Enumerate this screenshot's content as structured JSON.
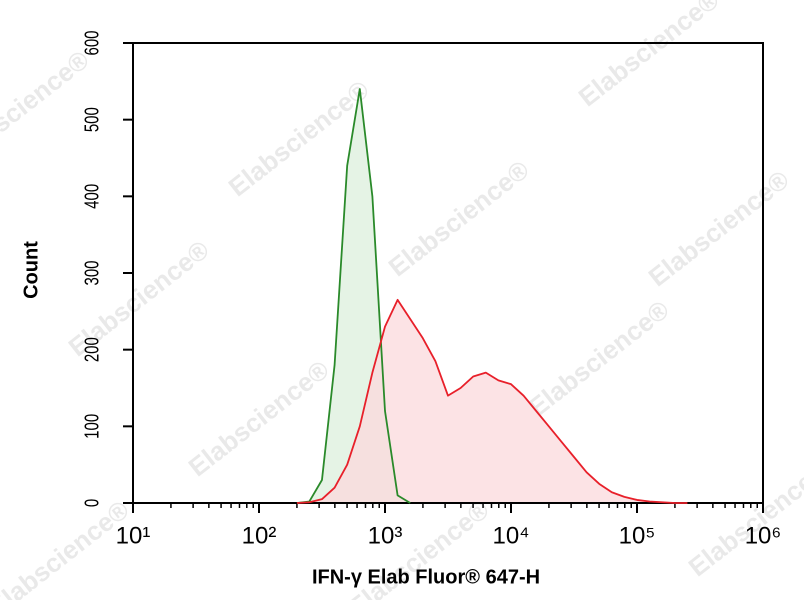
{
  "watermark": "Elabscience®",
  "chart_data": {
    "type": "histogram-overlay",
    "x_label": "IFN-γ Elab Fluor® 647-H",
    "y_label": "Count",
    "xscale": "log",
    "xlim": [
      10,
      1000000
    ],
    "xticks": [
      {
        "value": 10,
        "label": "10¹"
      },
      {
        "value": 100,
        "label": "10²"
      },
      {
        "value": 1000,
        "label": "10³"
      },
      {
        "value": 10000,
        "label": "10⁴"
      },
      {
        "value": 100000,
        "label": "10⁵"
      },
      {
        "value": 1000000,
        "label": "10⁶"
      }
    ],
    "ylim": [
      0,
      600
    ],
    "yticks": [
      0,
      100,
      200,
      300,
      400,
      500,
      600
    ],
    "x": [
      200,
      251,
      316,
      398,
      501,
      631,
      794,
      1000,
      1259,
      1585,
      1995,
      2512,
      3162,
      3981,
      5012,
      6310,
      7943,
      10000,
      12589,
      15849,
      19953,
      25119,
      31623,
      39811,
      50119,
      63096,
      79433,
      100000,
      125893,
      158489,
      199526,
      251189
    ],
    "series": [
      {
        "color": "#2a8a2a",
        "fill": "#dcefdc",
        "values": [
          0,
          2,
          30,
          180,
          440,
          540,
          400,
          120,
          10,
          0,
          null,
          null,
          null,
          null,
          null,
          null,
          null,
          null,
          null,
          null,
          null,
          null,
          null,
          null,
          null,
          null,
          null,
          null,
          null,
          null,
          null,
          null
        ]
      },
      {
        "color": "#e8202a",
        "fill": "#fbd9dc",
        "values": [
          0,
          1,
          5,
          20,
          50,
          100,
          170,
          230,
          265,
          240,
          215,
          185,
          140,
          150,
          165,
          170,
          160,
          155,
          140,
          120,
          100,
          80,
          60,
          40,
          25,
          14,
          8,
          4,
          2,
          1,
          0,
          0
        ]
      }
    ]
  }
}
